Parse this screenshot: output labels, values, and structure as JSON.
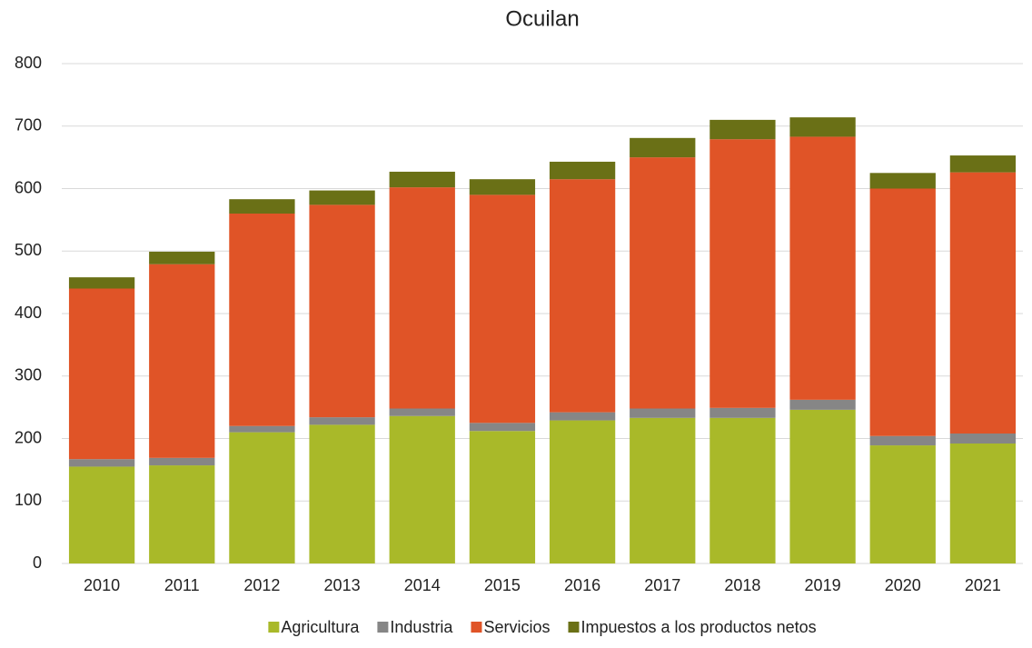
{
  "chart_data": {
    "type": "stacked_bar",
    "title": "Ocuilan",
    "categories": [
      "2010",
      "2011",
      "2012",
      "2013",
      "2014",
      "2015",
      "2016",
      "2017",
      "2018",
      "2019",
      "2020",
      "2021"
    ],
    "series": [
      {
        "name": "Agricultura",
        "color": "#a9b929",
        "values": [
          155,
          157,
          210,
          222,
          236,
          212,
          229,
          233,
          233,
          246,
          189,
          192
        ]
      },
      {
        "name": "Industria",
        "color": "#868686",
        "values": [
          12,
          12,
          10,
          12,
          12,
          13,
          13,
          15,
          16,
          16,
          15,
          16
        ]
      },
      {
        "name": "Servicios",
        "color": "#e05427",
        "values": [
          273,
          310,
          340,
          340,
          354,
          365,
          373,
          402,
          430,
          421,
          396,
          418
        ]
      },
      {
        "name": "Impuestos a los productos netos",
        "color": "#6a7016",
        "values": [
          18,
          20,
          23,
          23,
          25,
          25,
          28,
          31,
          31,
          31,
          25,
          27
        ]
      }
    ],
    "ylim": [
      0,
      800
    ],
    "yticks": [
      0,
      100,
      200,
      300,
      400,
      500,
      600,
      700,
      800
    ],
    "grid": true,
    "legend": "bottom"
  }
}
